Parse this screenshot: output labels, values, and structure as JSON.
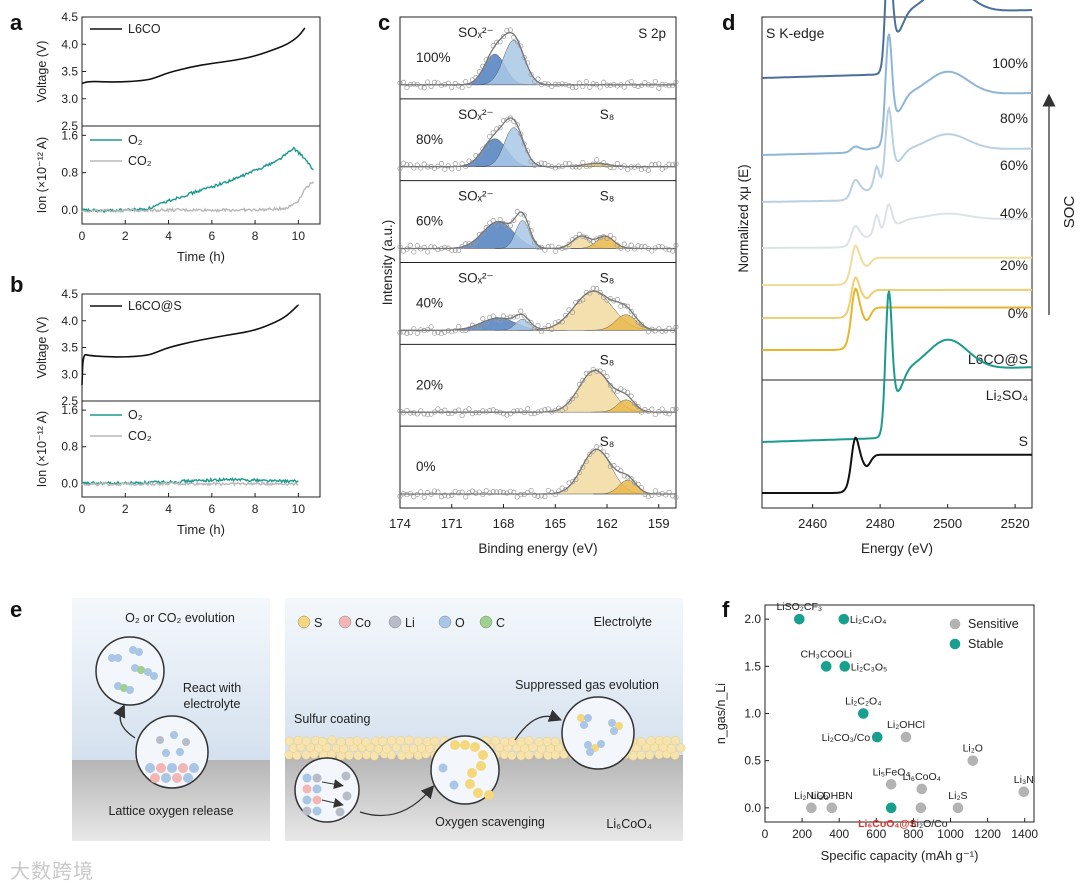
{
  "panel_letters": [
    "a",
    "b",
    "c",
    "d",
    "e",
    "f"
  ],
  "chart_data": [
    {
      "id": "a",
      "type": "line",
      "top": {
        "ylabel": "Voltage (V)",
        "yticks": [
          "2.5",
          "3.0",
          "3.5",
          "4.0",
          "4.5"
        ],
        "ylim": [
          2.5,
          4.5
        ],
        "series": [
          {
            "name": "L6CO",
            "color": "#111111",
            "x": [
              0,
              0.3,
              1,
              2,
              3,
              3.5,
              4,
              5,
              6,
              7,
              8,
              9,
              9.5,
              10,
              10.3
            ],
            "y": [
              3.28,
              3.32,
              3.31,
              3.31,
              3.34,
              3.4,
              3.48,
              3.58,
              3.65,
              3.7,
              3.78,
              3.92,
              4.0,
              4.14,
              4.3
            ]
          }
        ]
      },
      "bottom": {
        "ylabel": "Ion (×10⁻¹² A)",
        "yticks": [
          "0.0",
          "0.8",
          "1.6"
        ],
        "ylim": [
          -0.3,
          1.8
        ],
        "series": [
          {
            "name": "O₂",
            "color": "#1b9a8d",
            "x": [
              0,
              1,
              2,
              3,
              3.5,
              4,
              5,
              6,
              7,
              8,
              9,
              9.5,
              9.8,
              10.2,
              10.7
            ],
            "y": [
              0,
              -0.02,
              0,
              0.02,
              0.1,
              0.2,
              0.35,
              0.5,
              0.65,
              0.85,
              1.05,
              1.22,
              1.32,
              1.15,
              0.85
            ]
          },
          {
            "name": "CO₂",
            "color": "#b8b8b8",
            "x": [
              0,
              2,
              4,
              6,
              8,
              9,
              9.5,
              10,
              10.3,
              10.7
            ],
            "y": [
              -0.02,
              -0.01,
              0,
              0,
              0,
              0.02,
              0.05,
              0.2,
              0.45,
              0.62
            ]
          }
        ]
      },
      "xlabel": "Time (h)",
      "xticks": [
        "0",
        "2",
        "4",
        "6",
        "8",
        "10"
      ],
      "xlim": [
        0,
        11
      ]
    },
    {
      "id": "b",
      "type": "line",
      "top": {
        "ylabel": "Voltage (V)",
        "yticks": [
          "2.5",
          "3.0",
          "3.5",
          "4.0",
          "4.5"
        ],
        "ylim": [
          2.5,
          4.5
        ],
        "series": [
          {
            "name": "L6CO@S",
            "color": "#111111",
            "x": [
              0,
              0.05,
              0.3,
              1,
              2,
              3,
              3.5,
              4,
              5,
              6,
              7,
              8,
              9,
              9.5,
              10
            ],
            "y": [
              2.8,
              3.38,
              3.35,
              3.33,
              3.32,
              3.35,
              3.42,
              3.5,
              3.6,
              3.68,
              3.75,
              3.82,
              3.98,
              4.1,
              4.3
            ]
          }
        ]
      },
      "bottom": {
        "ylabel": "Ion (×10⁻¹² A)",
        "yticks": [
          "0.0",
          "0.8",
          "1.6"
        ],
        "ylim": [
          -0.3,
          1.8
        ],
        "series": [
          {
            "name": "O₂",
            "color": "#1b9a8d",
            "x": [
              0,
              2,
              4,
              5,
              6,
              7,
              8,
              9,
              10
            ],
            "y": [
              0,
              0,
              0.03,
              0.05,
              0.07,
              0.08,
              0.07,
              0.05,
              0.04
            ]
          },
          {
            "name": "CO₂",
            "color": "#b8b8b8",
            "x": [
              0,
              2,
              4,
              6,
              8,
              10
            ],
            "y": [
              -0.02,
              -0.02,
              -0.01,
              -0.01,
              -0.01,
              -0.01
            ]
          }
        ]
      },
      "xlabel": "Time (h)",
      "xticks": [
        "0",
        "2",
        "4",
        "6",
        "8",
        "10"
      ],
      "xlim": [
        0,
        11
      ]
    },
    {
      "id": "c",
      "type": "line",
      "title": "S 2p",
      "xlabel": "Binding energy (eV)",
      "ylabel": "Intensity (a.u.)",
      "xticks": [
        "174",
        "171",
        "168",
        "165",
        "162",
        "159"
      ],
      "xlim": [
        174,
        158
      ],
      "series": [
        {
          "name": "100%",
          "labels": [
            "SOₓ²⁻"
          ],
          "peaks": [
            {
              "center": 168.5,
              "height": 0.55,
              "width": 0.6,
              "color": "#4f7fbf"
            },
            {
              "center": 167.4,
              "height": 0.8,
              "width": 0.6,
              "color": "#a9c8e6"
            }
          ]
        },
        {
          "name": "80%",
          "labels": [
            "SOₓ²⁻",
            "S₈"
          ],
          "peaks": [
            {
              "center": 168.5,
              "height": 0.5,
              "width": 0.7,
              "color": "#4f7fbf"
            },
            {
              "center": 167.4,
              "height": 0.7,
              "width": 0.55,
              "color": "#a9c8e6"
            },
            {
              "center": 162.6,
              "height": 0.06,
              "width": 0.7,
              "color": "#e8c36a"
            }
          ]
        },
        {
          "name": "60%",
          "labels": [
            "SOₓ²⁻",
            "S₈"
          ],
          "peaks": [
            {
              "center": 168.3,
              "height": 0.48,
              "width": 0.9,
              "color": "#4f7fbf"
            },
            {
              "center": 166.9,
              "height": 0.5,
              "width": 0.4,
              "color": "#a9c8e6"
            },
            {
              "center": 163.5,
              "height": 0.22,
              "width": 0.5,
              "color": "#f2d9a0"
            },
            {
              "center": 162.1,
              "height": 0.22,
              "width": 0.5,
              "color": "#e8b84a"
            }
          ]
        },
        {
          "name": "40%",
          "labels": [
            "SOₓ²⁻",
            "S₈"
          ],
          "peaks": [
            {
              "center": 168.3,
              "height": 0.22,
              "width": 1.0,
              "color": "#4f7fbf"
            },
            {
              "center": 166.9,
              "height": 0.2,
              "width": 0.4,
              "color": "#a9c8e6"
            },
            {
              "center": 162.8,
              "height": 0.7,
              "width": 1.1,
              "color": "#f2d9a0"
            },
            {
              "center": 160.9,
              "height": 0.28,
              "width": 0.6,
              "color": "#e8b84a"
            }
          ]
        },
        {
          "name": "20%",
          "labels": [
            "S₈"
          ],
          "peaks": [
            {
              "center": 162.7,
              "height": 0.75,
              "width": 0.9,
              "color": "#f2d9a0"
            },
            {
              "center": 160.9,
              "height": 0.22,
              "width": 0.5,
              "color": "#e8b84a"
            }
          ]
        },
        {
          "name": "0%",
          "labels": [
            "S₈"
          ],
          "peaks": [
            {
              "center": 162.6,
              "height": 0.8,
              "width": 0.85,
              "color": "#f2d9a0"
            },
            {
              "center": 160.8,
              "height": 0.25,
              "width": 0.5,
              "color": "#e8b84a"
            }
          ]
        }
      ]
    },
    {
      "id": "d",
      "type": "line",
      "title": "S K-edge",
      "xlabel": "Energy (eV)",
      "ylabel": "Normalized xμ (E)",
      "xticks": [
        "2460",
        "2480",
        "2500",
        "2520"
      ],
      "xlim": [
        2445,
        2525
      ],
      "arrow_label": "SOC",
      "series": [
        {
          "name": "100%",
          "color": "#4b6f9c",
          "kind": "sulfate"
        },
        {
          "name": "80%",
          "color": "#8fb6d6",
          "kind": "mix80"
        },
        {
          "name": "60%",
          "color": "#b9d0e2",
          "kind": "mix60"
        },
        {
          "name": "40%",
          "color": "#dde2e8",
          "kind": "mix40"
        },
        {
          "name": "20%",
          "color": "#f2dc9c",
          "kind": "sulfur"
        },
        {
          "name": "0%",
          "color": "#efcf73",
          "kind": "sulfur"
        },
        {
          "name": "L6CO@S",
          "color": "#e7b52d",
          "kind": "sulfur"
        },
        {
          "name": "Li₂SO₄",
          "color": "#1b9a8d",
          "kind": "sulfate"
        },
        {
          "name": "S",
          "color": "#111111",
          "kind": "sulfur"
        }
      ]
    },
    {
      "id": "f",
      "type": "scatter",
      "xlabel": "Specific capacity (mAh g⁻¹)",
      "ylabel": "n_gas/n_Li",
      "xticks": [
        "0",
        "200",
        "400",
        "600",
        "800",
        "1000",
        "1200",
        "1400"
      ],
      "yticks": [
        "0.0",
        "0.5",
        "1.0",
        "1.5",
        "2.0"
      ],
      "xlim": [
        0,
        1450
      ],
      "ylim": [
        -0.15,
        2.15
      ],
      "legend": [
        "Sensitive",
        "Stable"
      ],
      "legend_colors": [
        "#b3b3b3",
        "#17a08d"
      ],
      "points": [
        {
          "label": "LiSO₂CF₃",
          "x": 185,
          "y": 2.0,
          "group": "Stable"
        },
        {
          "label": "Li₂C₄O₄",
          "x": 425,
          "y": 2.0,
          "group": "Stable"
        },
        {
          "label": "CH₃COOLi",
          "x": 330,
          "y": 1.5,
          "group": "Stable"
        },
        {
          "label": "Li₂C₃O₅",
          "x": 430,
          "y": 1.5,
          "group": "Stable"
        },
        {
          "label": "Li₂C₂O₄",
          "x": 530,
          "y": 1.0,
          "group": "Stable"
        },
        {
          "label": "Li₂CO₃/Co",
          "x": 605,
          "y": 0.75,
          "group": "Stable"
        },
        {
          "label": "Li₂OHCl",
          "x": 760,
          "y": 0.75,
          "group": "Sensitive"
        },
        {
          "label": "Li₂O",
          "x": 1120,
          "y": 0.5,
          "group": "Sensitive"
        },
        {
          "label": "Li₅FeO₄",
          "x": 680,
          "y": 0.25,
          "group": "Sensitive"
        },
        {
          "label": "Li₆CoO₄",
          "x": 845,
          "y": 0.2,
          "group": "Sensitive"
        },
        {
          "label": "Li₃N",
          "x": 1395,
          "y": 0.17,
          "group": "Sensitive"
        },
        {
          "label": "Li₂NiO₂",
          "x": 250,
          "y": 0.0,
          "group": "Sensitive"
        },
        {
          "label": "Li₂DHBN",
          "x": 360,
          "y": 0.0,
          "group": "Sensitive"
        },
        {
          "label": "Li₆CoO₄@S",
          "x": 680,
          "y": 0.0,
          "group": "Stable",
          "highlight": "#e0332b"
        },
        {
          "label": "Li₂O/Co",
          "x": 840,
          "y": 0.0,
          "group": "Sensitive"
        },
        {
          "label": "Li₂S",
          "x": 1040,
          "y": 0.0,
          "group": "Sensitive"
        }
      ]
    }
  ],
  "panel_e": {
    "left_title": "O₂ or CO₂ evolution",
    "react_label": "React with electrolyte",
    "lattice_label": "Lattice oxygen release",
    "legend": [
      {
        "label": "S",
        "color": "#f5d77c"
      },
      {
        "label": "Co",
        "color": "#f4b6b4"
      },
      {
        "label": "Li",
        "color": "#b8bcc8"
      },
      {
        "label": "O",
        "color": "#a9c6e6"
      },
      {
        "label": "C",
        "color": "#9fd08e"
      }
    ],
    "electrolyte_label": "Electrolyte",
    "suppressed_label": "Suppressed gas evolution",
    "coating_label": "Sulfur coating",
    "scavenging_label": "Oxygen scavenging",
    "material_label": "Li₆CoO₄"
  },
  "watermark": "大数跨境"
}
